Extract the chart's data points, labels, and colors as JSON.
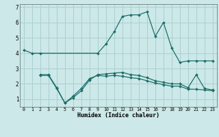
{
  "xlabel": "Humidex (Indice chaleur)",
  "background_color": "#cce8e8",
  "grid_color": "#aacfcf",
  "line_color": "#1a6e6a",
  "xlim": [
    -0.5,
    23.5
  ],
  "ylim": [
    0.5,
    7.2
  ],
  "yticks": [
    1,
    2,
    3,
    4,
    5,
    6,
    7
  ],
  "xticks": [
    0,
    1,
    2,
    3,
    4,
    5,
    6,
    7,
    8,
    9,
    10,
    11,
    12,
    13,
    14,
    15,
    16,
    17,
    18,
    19,
    20,
    21,
    22,
    23
  ],
  "series": [
    {
      "x": [
        0,
        1,
        2,
        9,
        10,
        11,
        12,
        13,
        14,
        15,
        16,
        17,
        18,
        19,
        20,
        21,
        22,
        23
      ],
      "y": [
        4.2,
        4.0,
        4.0,
        4.0,
        4.6,
        5.4,
        6.4,
        6.5,
        6.5,
        6.7,
        5.1,
        6.0,
        4.35,
        3.4,
        3.5,
        3.5,
        3.5,
        3.5
      ]
    },
    {
      "x": [
        2,
        3,
        4,
        5,
        6,
        7,
        8,
        9,
        10,
        11,
        12,
        13,
        14,
        15,
        16,
        17,
        18,
        19,
        20,
        21,
        22,
        23
      ],
      "y": [
        2.6,
        2.6,
        1.75,
        0.75,
        1.1,
        1.55,
        2.25,
        2.6,
        2.65,
        2.7,
        2.75,
        2.6,
        2.55,
        2.4,
        2.2,
        2.1,
        2.0,
        2.0,
        1.75,
        2.6,
        1.7,
        1.6
      ]
    },
    {
      "x": [
        2,
        3,
        4,
        5,
        6,
        7,
        8,
        9,
        10,
        11,
        12,
        13,
        14,
        15,
        16,
        17,
        18,
        19,
        20,
        21,
        22,
        23
      ],
      "y": [
        2.55,
        2.55,
        1.7,
        0.75,
        1.2,
        1.7,
        2.35,
        2.55,
        2.5,
        2.55,
        2.5,
        2.4,
        2.35,
        2.2,
        2.05,
        1.95,
        1.85,
        1.85,
        1.65,
        1.65,
        1.6,
        1.55
      ]
    }
  ]
}
